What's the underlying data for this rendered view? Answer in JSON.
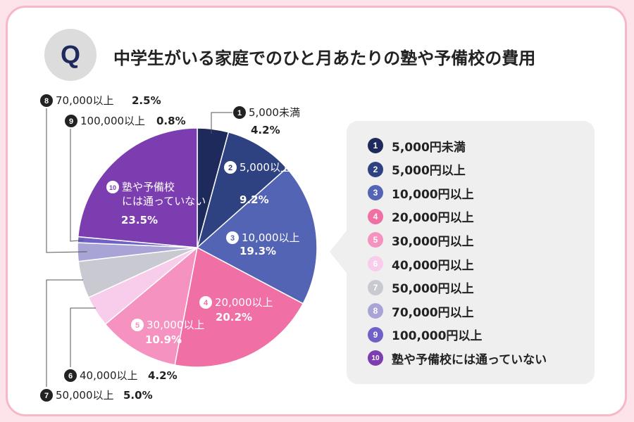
{
  "title": "中学生がいる家庭でのひと月あたりの塾や予備校の費用",
  "badge": "Q",
  "chart_data": {
    "type": "pie",
    "title": "中学生がいる家庭でのひと月あたりの塾や予備校の費用",
    "unit": "%",
    "slices": [
      {
        "num": "1",
        "label": "5,000円未満",
        "chart_label": "5,000未満",
        "value": 4.2,
        "value_text": "4.2%",
        "color": "#1f2a5c"
      },
      {
        "num": "2",
        "label": "5,000円以上",
        "chart_label": "5,000以上",
        "value": 9.2,
        "value_text": "9.2%",
        "color": "#2e4180"
      },
      {
        "num": "3",
        "label": "10,000円以上",
        "chart_label": "10,000以上",
        "value": 19.3,
        "value_text": "19.3%",
        "color": "#5464b4"
      },
      {
        "num": "4",
        "label": "20,000円以上",
        "chart_label": "20,000以上",
        "value": 20.2,
        "value_text": "20.2%",
        "color": "#f06fa4"
      },
      {
        "num": "5",
        "label": "30,000円以上",
        "chart_label": "30,000以上",
        "value": 10.9,
        "value_text": "10.9%",
        "color": "#f592c0"
      },
      {
        "num": "6",
        "label": "40,000円以上",
        "chart_label": "40,000以上",
        "value": 4.2,
        "value_text": "4.2%",
        "color": "#f8cdec"
      },
      {
        "num": "7",
        "label": "50,000円以上",
        "chart_label": "50,000以上",
        "value": 5.0,
        "value_text": "5.0%",
        "color": "#c9c9d2"
      },
      {
        "num": "8",
        "label": "70,000円以上",
        "chart_label": "70,000以上",
        "value": 2.5,
        "value_text": "2.5%",
        "color": "#a8a4d6"
      },
      {
        "num": "9",
        "label": "100,000円以上",
        "chart_label": "100,000以上",
        "value": 0.8,
        "value_text": "0.8%",
        "color": "#6f61c8"
      },
      {
        "num": "10",
        "label": "塾や予備校には通っていない",
        "chart_label": "塾や予備校\nには通っていない",
        "value": 23.5,
        "value_text": "23.5%",
        "color": "#7c3db0"
      }
    ]
  }
}
